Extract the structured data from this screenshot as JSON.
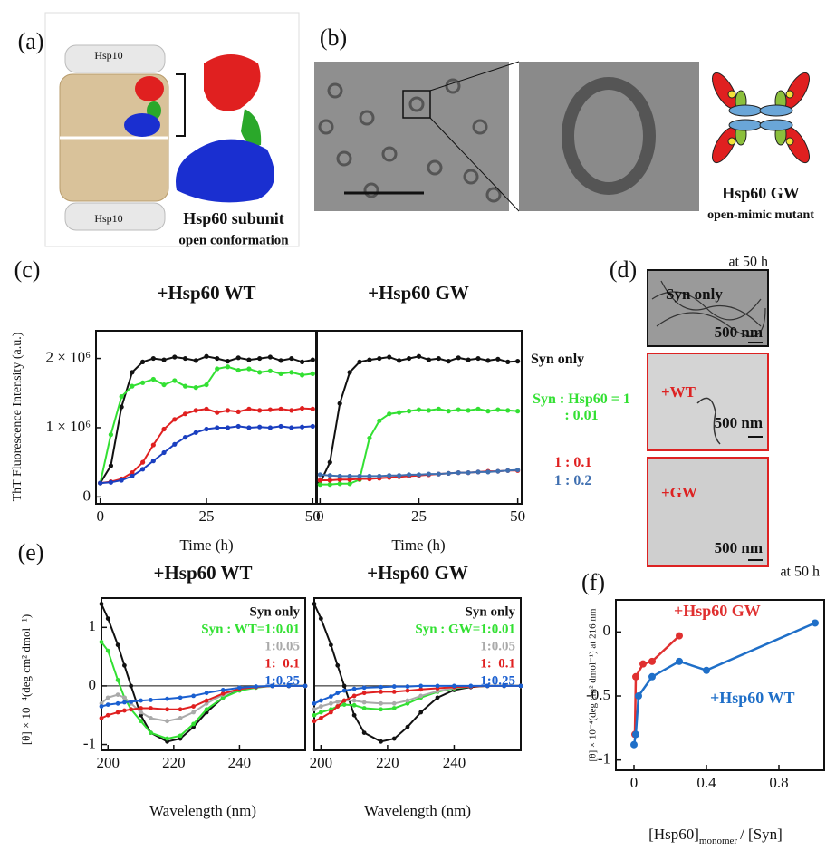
{
  "panels": {
    "a": {
      "label": "(a)",
      "hsp10_top": "Hsp10",
      "hsp10_bottom": "Hsp10",
      "subunit": "Hsp60 subunit",
      "conformation": "open conformation"
    },
    "b": {
      "label": "(b)",
      "mutant": "Hsp60 GW",
      "mutant_note": "open-mimic mutant"
    },
    "c": {
      "label": "(c)"
    },
    "d": {
      "label": "(d)",
      "time": "at 50 h",
      "images": [
        {
          "label": "Syn only",
          "scale": "500 nm"
        },
        {
          "label": "+WT",
          "scale": "500 nm"
        },
        {
          "label": "+GW",
          "scale": "500 nm"
        }
      ]
    },
    "e": {
      "label": "(e)"
    },
    "f": {
      "label": "(f)"
    }
  },
  "chart_data": [
    {
      "type": "line",
      "title": "+Hsp60 WT",
      "xlabel": "Time (h)",
      "ylabel": "ThT Fluorescence Intensity (a.u.)",
      "x": [
        0,
        2.5,
        5,
        7.5,
        10,
        12.5,
        15,
        17.5,
        20,
        22.5,
        25,
        27.5,
        30,
        32.5,
        35,
        37.5,
        40,
        42.5,
        45,
        47.5,
        50
      ],
      "xlim": [
        -1,
        51
      ],
      "xticks": [
        0,
        25,
        50
      ],
      "ylim": [
        -100000,
        2400000
      ],
      "yticks": [
        0,
        {
          "value": 1000000,
          "label": "1 × 10⁶"
        },
        {
          "value": 2000000,
          "label": "2 × 10⁶"
        }
      ],
      "series": [
        {
          "color": "#111111",
          "values": [
            200000,
            450000,
            1300000,
            1800000,
            1950000,
            2000000,
            1980000,
            2020000,
            2000000,
            1970000,
            2030000,
            2000000,
            1960000,
            2010000,
            1980000,
            2000000,
            2020000,
            1970000,
            2000000,
            1950000,
            1980000
          ]
        },
        {
          "color": "#33e033",
          "values": [
            200000,
            900000,
            1450000,
            1600000,
            1650000,
            1700000,
            1620000,
            1680000,
            1600000,
            1580000,
            1620000,
            1850000,
            1880000,
            1830000,
            1850000,
            1800000,
            1820000,
            1780000,
            1800000,
            1760000,
            1780000
          ]
        },
        {
          "color": "#e02020",
          "values": [
            200000,
            220000,
            260000,
            350000,
            500000,
            750000,
            980000,
            1120000,
            1200000,
            1250000,
            1270000,
            1220000,
            1250000,
            1230000,
            1270000,
            1250000,
            1260000,
            1270000,
            1250000,
            1280000,
            1270000
          ]
        },
        {
          "color": "#1a3fc0",
          "values": [
            200000,
            210000,
            240000,
            300000,
            400000,
            520000,
            640000,
            760000,
            860000,
            930000,
            980000,
            1000000,
            1000000,
            1020000,
            1000000,
            1010000,
            1000000,
            1020000,
            1000000,
            1010000,
            1020000
          ]
        }
      ]
    },
    {
      "type": "line",
      "title": "+Hsp60 GW",
      "xlabel": "Time (h)",
      "x": [
        0,
        2.5,
        5,
        7.5,
        10,
        12.5,
        15,
        17.5,
        20,
        22.5,
        25,
        27.5,
        30,
        32.5,
        35,
        37.5,
        40,
        42.5,
        45,
        47.5,
        50
      ],
      "xlim": [
        -1,
        51
      ],
      "xticks": [
        0,
        25,
        50
      ],
      "ylim": [
        -100000,
        2400000
      ],
      "series": [
        {
          "name": "Syn only",
          "color": "#111111",
          "values": [
            200000,
            500000,
            1350000,
            1800000,
            1950000,
            1980000,
            2000000,
            2020000,
            1970000,
            2000000,
            2030000,
            1980000,
            2000000,
            1960000,
            2010000,
            1980000,
            2000000,
            1970000,
            1990000,
            1950000,
            1960000
          ]
        },
        {
          "name": "Syn : Hsp60 = 1 : 0.01",
          "color": "#33e033",
          "values": [
            180000,
            180000,
            190000,
            190000,
            250000,
            850000,
            1100000,
            1200000,
            1220000,
            1240000,
            1260000,
            1250000,
            1270000,
            1240000,
            1260000,
            1250000,
            1270000,
            1240000,
            1260000,
            1250000,
            1240000
          ]
        },
        {
          "name": "1 : 0.1",
          "color": "#e02020",
          "values": [
            240000,
            240000,
            250000,
            250000,
            260000,
            260000,
            270000,
            280000,
            290000,
            300000,
            310000,
            320000,
            330000,
            340000,
            350000,
            350000,
            360000,
            370000,
            370000,
            380000,
            380000
          ]
        },
        {
          "name": "1 : 0.2",
          "color": "#3f6fb0",
          "values": [
            320000,
            310000,
            300000,
            300000,
            300000,
            300000,
            300000,
            310000,
            310000,
            320000,
            320000,
            330000,
            330000,
            340000,
            350000,
            350000,
            360000,
            360000,
            370000,
            380000,
            390000
          ]
        }
      ]
    },
    {
      "type": "line",
      "title": "+Hsp60 WT",
      "xlabel": "Wavelength (nm)",
      "ylabel": "[θ] × 10⁻⁴(deg cm² dmol⁻¹)",
      "x": [
        198,
        200,
        203,
        205,
        207,
        210,
        213,
        218,
        222,
        226,
        230,
        235,
        240,
        245,
        250,
        255,
        260
      ],
      "xlim": [
        198,
        260
      ],
      "xticks": [
        200,
        220,
        240
      ],
      "ylim": [
        -1.1,
        1.5
      ],
      "yticks": [
        -1,
        0,
        1
      ],
      "zero_line": true,
      "series": [
        {
          "name": "Syn only",
          "color": "#111111",
          "values": [
            1.4,
            1.15,
            0.7,
            0.35,
            0.0,
            -0.5,
            -0.8,
            -0.95,
            -0.9,
            -0.7,
            -0.45,
            -0.2,
            -0.07,
            -0.02,
            0,
            0,
            0
          ]
        },
        {
          "name": "Syn : WT=1:0.01",
          "color": "#33e033",
          "values": [
            0.75,
            0.6,
            0.1,
            -0.2,
            -0.4,
            -0.6,
            -0.8,
            -0.9,
            -0.85,
            -0.65,
            -0.4,
            -0.2,
            -0.08,
            -0.03,
            0,
            0,
            0
          ]
        },
        {
          "name": "1:0.05",
          "color": "#aaaaaa",
          "values": [
            -0.3,
            -0.2,
            -0.15,
            -0.2,
            -0.3,
            -0.45,
            -0.55,
            -0.6,
            -0.55,
            -0.45,
            -0.3,
            -0.15,
            -0.05,
            -0.02,
            0,
            0,
            0
          ]
        },
        {
          "name": "1:  0.1",
          "color": "#e02020",
          "values": [
            -0.55,
            -0.5,
            -0.45,
            -0.42,
            -0.4,
            -0.38,
            -0.38,
            -0.4,
            -0.4,
            -0.35,
            -0.25,
            -0.13,
            -0.05,
            -0.02,
            0,
            0,
            0
          ]
        },
        {
          "name": "1:0.25",
          "color": "#1a5fd0",
          "values": [
            -0.35,
            -0.32,
            -0.3,
            -0.28,
            -0.27,
            -0.25,
            -0.24,
            -0.22,
            -0.2,
            -0.17,
            -0.12,
            -0.07,
            -0.03,
            -0.01,
            0,
            0,
            0
          ]
        }
      ]
    },
    {
      "type": "line",
      "title": "+Hsp60 GW",
      "xlabel": "Wavelength (nm)",
      "x": [
        198,
        200,
        203,
        205,
        207,
        210,
        213,
        218,
        222,
        226,
        230,
        235,
        240,
        245,
        250,
        255,
        260
      ],
      "xlim": [
        198,
        260
      ],
      "xticks": [
        200,
        220,
        240
      ],
      "ylim": [
        -1.1,
        1.5
      ],
      "zero_line": true,
      "series": [
        {
          "name": "Syn only",
          "color": "#111111",
          "values": [
            1.4,
            1.15,
            0.7,
            0.35,
            0.0,
            -0.5,
            -0.8,
            -0.95,
            -0.9,
            -0.7,
            -0.45,
            -0.2,
            -0.07,
            -0.02,
            0,
            0,
            0
          ]
        },
        {
          "name": "Syn : GW=1:0.01",
          "color": "#33e033",
          "values": [
            -0.5,
            -0.45,
            -0.4,
            -0.35,
            -0.32,
            -0.33,
            -0.38,
            -0.4,
            -0.38,
            -0.3,
            -0.2,
            -0.1,
            -0.04,
            -0.01,
            0,
            0,
            0
          ]
        },
        {
          "name": "1:0.05",
          "color": "#aaaaaa",
          "values": [
            -0.4,
            -0.35,
            -0.3,
            -0.27,
            -0.25,
            -0.25,
            -0.28,
            -0.3,
            -0.3,
            -0.25,
            -0.17,
            -0.09,
            -0.03,
            -0.01,
            0,
            0,
            0
          ]
        },
        {
          "name": "1:  0.1",
          "color": "#e02020",
          "values": [
            -0.6,
            -0.55,
            -0.45,
            -0.35,
            -0.25,
            -0.17,
            -0.12,
            -0.1,
            -0.1,
            -0.08,
            -0.06,
            -0.04,
            -0.02,
            -0.01,
            0,
            0,
            0
          ]
        },
        {
          "name": "1:0.25",
          "color": "#1a5fd0",
          "values": [
            -0.3,
            -0.25,
            -0.18,
            -0.12,
            -0.08,
            -0.05,
            -0.03,
            -0.02,
            -0.01,
            -0.01,
            0,
            0,
            0,
            0,
            0,
            0,
            0
          ]
        }
      ]
    },
    {
      "type": "line",
      "title": "at 50 h",
      "xlabel_parts": [
        "[Hsp60]",
        "monomer",
        "/ [Syn]"
      ],
      "ylabel": "[θ] × 10⁻⁴(deg cm² dmol⁻¹) at 216 nm",
      "xlim": [
        -0.1,
        1.05
      ],
      "xticks": [
        0,
        0.4,
        0.8
      ],
      "ylim": [
        -1.08,
        0.25
      ],
      "yticks": [
        -1,
        -0.5,
        0
      ],
      "series": [
        {
          "name": "+Hsp60 GW",
          "color": "#e03030",
          "x": [
            0.005,
            0.01,
            0.05,
            0.1,
            0.25
          ],
          "values": [
            -0.8,
            -0.35,
            -0.25,
            -0.23,
            -0.03
          ]
        },
        {
          "name": "+Hsp60 WT",
          "color": "#1f6fc8",
          "x": [
            0,
            0.01,
            0.025,
            0.1,
            0.25,
            0.4,
            1
          ],
          "values": [
            -0.88,
            -0.8,
            -0.5,
            -0.35,
            -0.23,
            -0.3,
            0.07
          ]
        }
      ]
    }
  ]
}
